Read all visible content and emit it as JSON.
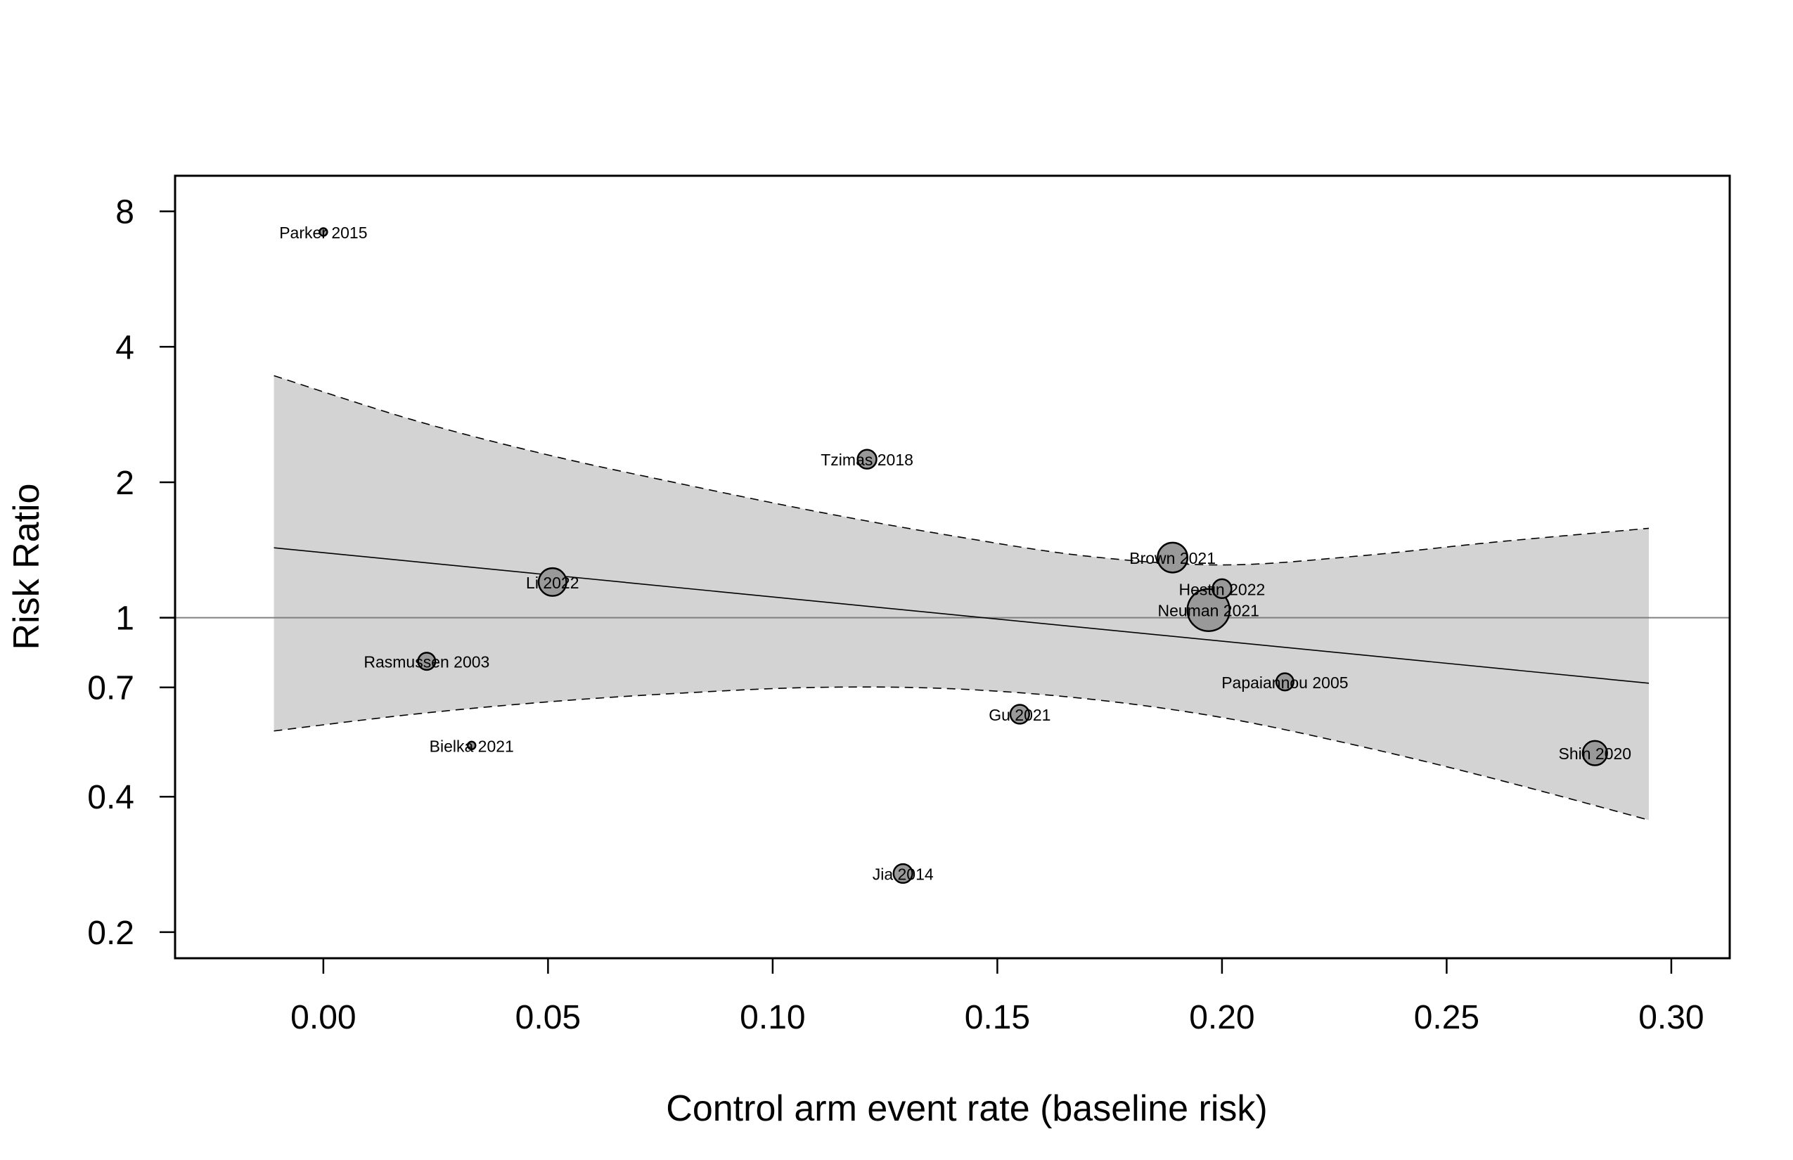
{
  "chart_data": {
    "type": "scatter",
    "title": "",
    "xlabel": "Control arm event rate (baseline risk)",
    "ylabel": "Risk Ratio",
    "y_scale": "log",
    "xlim": [
      -0.033,
      0.313
    ],
    "ylim": [
      0.175,
      9.6
    ],
    "x_ticks": [
      0.0,
      0.05,
      0.1,
      0.15,
      0.2,
      0.25,
      0.3
    ],
    "x_tick_labels": [
      "0.00",
      "0.05",
      "0.10",
      "0.15",
      "0.20",
      "0.25",
      "0.30"
    ],
    "y_ticks": [
      0.2,
      0.4,
      0.7,
      1,
      2,
      4,
      8
    ],
    "y_tick_labels": [
      "0.2",
      "0.4",
      "0.7",
      "1",
      "2",
      "4",
      "8"
    ],
    "reference_line_y": 1,
    "regression": {
      "x_range": [
        -0.011,
        0.295
      ],
      "fit": [
        [
          -0.011,
          1.43
        ],
        [
          0.295,
          0.715
        ]
      ],
      "ci_lower": [
        [
          -0.011,
          0.56
        ],
        [
          0.02,
          0.61
        ],
        [
          0.05,
          0.65
        ],
        [
          0.08,
          0.68
        ],
        [
          0.11,
          0.7
        ],
        [
          0.14,
          0.695
        ],
        [
          0.17,
          0.66
        ],
        [
          0.2,
          0.6
        ],
        [
          0.23,
          0.52
        ],
        [
          0.26,
          0.44
        ],
        [
          0.295,
          0.355
        ]
      ],
      "ci_upper": [
        [
          -0.011,
          3.45
        ],
        [
          0.02,
          2.75
        ],
        [
          0.05,
          2.3
        ],
        [
          0.08,
          1.98
        ],
        [
          0.11,
          1.72
        ],
        [
          0.14,
          1.52
        ],
        [
          0.17,
          1.37
        ],
        [
          0.2,
          1.31
        ],
        [
          0.23,
          1.37
        ],
        [
          0.26,
          1.47
        ],
        [
          0.295,
          1.58
        ]
      ]
    },
    "grid": false,
    "legend": "none",
    "colors": {
      "band": "#d3d3d3",
      "point_fill": "#999999",
      "point_stroke": "#000000",
      "fit_line": "#000000",
      "reference_line": "#808080"
    },
    "points": [
      {
        "label": "Parker 2015",
        "x": 0.0,
        "y": 7.2,
        "weight": 0.05
      },
      {
        "label": "Tzimas 2018",
        "x": 0.121,
        "y": 2.25,
        "weight": 0.3
      },
      {
        "label": "Li 2022",
        "x": 0.051,
        "y": 1.2,
        "weight": 0.65
      },
      {
        "label": "Rasmussen 2003",
        "x": 0.023,
        "y": 0.8,
        "weight": 0.25
      },
      {
        "label": "Bielka 2021",
        "x": 0.033,
        "y": 0.52,
        "weight": 0.05
      },
      {
        "label": "Jia 2014",
        "x": 0.129,
        "y": 0.27,
        "weight": 0.3
      },
      {
        "label": "Gu 2021",
        "x": 0.155,
        "y": 0.61,
        "weight": 0.3
      },
      {
        "label": "Brown 2021",
        "x": 0.189,
        "y": 1.36,
        "weight": 0.75
      },
      {
        "label": "Hestin 2022",
        "x": 0.2,
        "y": 1.16,
        "weight": 0.3
      },
      {
        "label": "Neuman 2021",
        "x": 0.197,
        "y": 1.04,
        "weight": 1.5
      },
      {
        "label": "Papaiannou 2005",
        "x": 0.214,
        "y": 0.72,
        "weight": 0.25
      },
      {
        "label": "Shin 2020",
        "x": 0.283,
        "y": 0.5,
        "weight": 0.5
      }
    ]
  }
}
